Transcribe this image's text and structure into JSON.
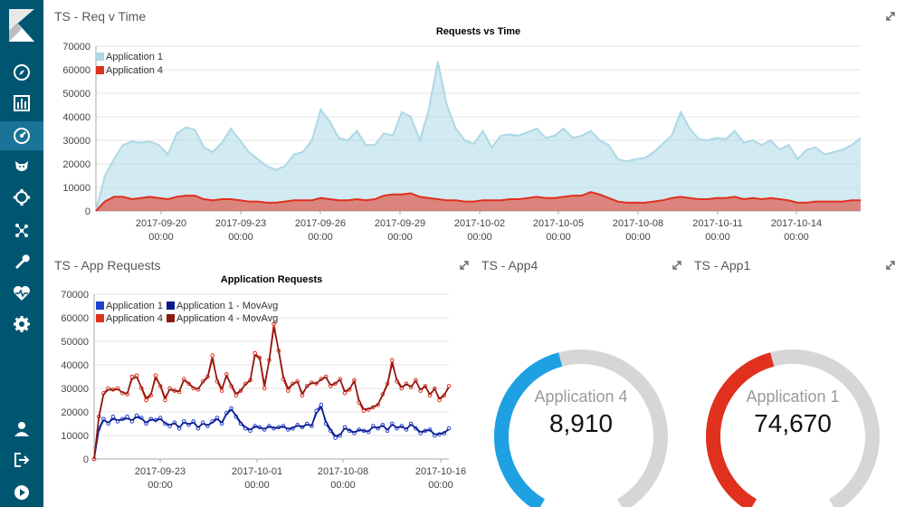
{
  "sidebar": {
    "items": [
      {
        "name": "discover-icon"
      },
      {
        "name": "visualize-icon"
      },
      {
        "name": "dashboard-icon"
      },
      {
        "name": "timelion-icon"
      },
      {
        "name": "apm-icon"
      },
      {
        "name": "graph-icon"
      },
      {
        "name": "devtools-icon"
      },
      {
        "name": "monitoring-icon"
      },
      {
        "name": "management-icon"
      }
    ],
    "bottom": [
      {
        "name": "user-icon"
      },
      {
        "name": "logout-icon"
      },
      {
        "name": "collapse-icon"
      }
    ]
  },
  "panels": {
    "top": {
      "title": "TS - Req v Time"
    },
    "bottom_left": {
      "title": "TS - App Requests"
    },
    "app4": {
      "title": "TS - App4"
    },
    "app1": {
      "title": "TS - App1"
    }
  },
  "chart_data": [
    {
      "type": "area",
      "title": "Requests vs Time",
      "ylim": [
        0,
        70000
      ],
      "yticks": [
        "0",
        "10000",
        "20000",
        "30000",
        "40000",
        "50000",
        "60000",
        "70000"
      ],
      "xticks": [
        {
          "date": "2017-09-20",
          "time": "00:00"
        },
        {
          "date": "2017-09-23",
          "time": "00:00"
        },
        {
          "date": "2017-09-26",
          "time": "00:00"
        },
        {
          "date": "2017-09-29",
          "time": "00:00"
        },
        {
          "date": "2017-10-02",
          "time": "00:00"
        },
        {
          "date": "2017-10-05",
          "time": "00:00"
        },
        {
          "date": "2017-10-08",
          "time": "00:00"
        },
        {
          "date": "2017-10-11",
          "time": "00:00"
        },
        {
          "date": "2017-10-14",
          "time": "00:00"
        }
      ],
      "legend": [
        "Application 1",
        "Application 4"
      ],
      "series": [
        {
          "name": "Application 1",
          "color": "#add8e6",
          "values": [
            0,
            15000,
            22000,
            28000,
            29500,
            29000,
            29500,
            28000,
            24000,
            33000,
            35500,
            34500,
            27000,
            25000,
            29000,
            35000,
            30000,
            25000,
            22000,
            19000,
            17500,
            19000,
            24000,
            25000,
            30000,
            43000,
            38000,
            31000,
            30000,
            34000,
            28000,
            28000,
            33000,
            32000,
            42000,
            40000,
            30000,
            43000,
            63500,
            45000,
            35000,
            30000,
            28500,
            34000,
            27000,
            32000,
            32500,
            32000,
            33500,
            35000,
            31000,
            32000,
            35000,
            31000,
            32000,
            34000,
            30000,
            28000,
            22000,
            21000,
            22000,
            22500,
            25000,
            28500,
            32000,
            42000,
            35000,
            30500,
            30000,
            31000,
            30500,
            34000,
            29000,
            30000,
            28000,
            30000,
            26000,
            28000,
            22000,
            26000,
            27000,
            24000,
            25000,
            26000,
            28000,
            31000
          ]
        },
        {
          "name": "Application 4",
          "color": "#e0301e",
          "values": [
            0,
            4000,
            6000,
            6000,
            5000,
            5500,
            6000,
            5500,
            5000,
            6000,
            6500,
            6500,
            5000,
            4500,
            5000,
            5000,
            4500,
            4000,
            4000,
            3500,
            3500,
            4000,
            4500,
            4500,
            4500,
            5500,
            5000,
            4500,
            4500,
            5000,
            4500,
            5000,
            6500,
            7000,
            7000,
            7500,
            6000,
            5500,
            5000,
            4500,
            4500,
            4000,
            4000,
            4500,
            4500,
            4500,
            5000,
            5000,
            5500,
            6000,
            5500,
            5500,
            6000,
            6500,
            6500,
            8000,
            7000,
            5500,
            4000,
            3500,
            3500,
            3500,
            4000,
            4500,
            5500,
            6000,
            5500,
            5000,
            5000,
            5500,
            5500,
            6000,
            5000,
            5500,
            5000,
            5500,
            5000,
            4500,
            3500,
            3500,
            4000,
            4000,
            4000,
            4000,
            4500,
            4500
          ]
        }
      ]
    },
    {
      "type": "line",
      "title": "Application Requests",
      "ylim": [
        0,
        70000
      ],
      "yticks": [
        "0",
        "10000",
        "20000",
        "30000",
        "40000",
        "50000",
        "60000",
        "70000"
      ],
      "xticks": [
        {
          "date": "2017-09-23",
          "time": "00:00"
        },
        {
          "date": "2017-10-01",
          "time": "00:00"
        },
        {
          "date": "2017-10-08",
          "time": "00:00"
        },
        {
          "date": "2017-10-16",
          "time": "00:00"
        }
      ],
      "legend": [
        "Application 1",
        "Application 1 - MovAvg",
        "Application 4",
        "Application 4 - MovAvg"
      ],
      "series": [
        {
          "name": "Application 1",
          "color": "#1e40d0",
          "values": [
            0,
            13000,
            17000,
            15000,
            18000,
            16000,
            17000,
            18000,
            16000,
            18500,
            17500,
            15000,
            17000,
            16500,
            17500,
            15000,
            14000,
            15500,
            13000,
            16000,
            14500,
            16000,
            13000,
            15500,
            14000,
            16000,
            17500,
            15000,
            19500,
            21500,
            18000,
            15000,
            13000,
            12000,
            14000,
            13500,
            12500,
            14000,
            13000,
            13500,
            14000,
            12500,
            13000,
            14500,
            13500,
            15000,
            14000,
            20500,
            23000,
            15000,
            12000,
            9000,
            10000,
            13500,
            12000,
            11000,
            12500,
            12000,
            11500,
            14000,
            13000,
            14500,
            12000,
            15000,
            13000,
            14000,
            12500,
            15000,
            13000,
            11000,
            12000,
            12500,
            10000,
            10500,
            11000,
            13000
          ]
        },
        {
          "name": "Application 1 - MovAvg",
          "color": "#0b1a8a",
          "values": [
            0,
            12500,
            16500,
            15500,
            17000,
            16500,
            16800,
            17200,
            16500,
            17800,
            17200,
            15500,
            16800,
            16300,
            17000,
            15300,
            14500,
            15200,
            13500,
            15500,
            14800,
            15500,
            13500,
            15000,
            14300,
            15500,
            17000,
            15500,
            19000,
            21000,
            18500,
            15500,
            13500,
            12500,
            13800,
            13300,
            12800,
            13800,
            13200,
            13300,
            13800,
            12800,
            13200,
            14200,
            13600,
            14600,
            14200,
            19500,
            22000,
            16000,
            12500,
            9800,
            10300,
            13000,
            12200,
            11400,
            12300,
            12000,
            11800,
            13600,
            13200,
            14200,
            12400,
            14600,
            13300,
            13800,
            12800,
            14600,
            13200,
            11500,
            12000,
            12300,
            10500,
            10700,
            11200,
            12600
          ]
        },
        {
          "name": "Application 4",
          "color": "#e0301e",
          "values": [
            0,
            18000,
            28000,
            30000,
            29500,
            30000,
            28000,
            27500,
            35000,
            35500,
            30000,
            25000,
            27000,
            35500,
            31000,
            25000,
            30000,
            29000,
            28500,
            34000,
            32000,
            30000,
            29500,
            33000,
            35000,
            44000,
            33000,
            29000,
            36000,
            31000,
            27000,
            29000,
            32000,
            33500,
            45000,
            43000,
            30000,
            42000,
            57500,
            46000,
            34000,
            29000,
            32000,
            33000,
            27000,
            31000,
            32500,
            32000,
            34000,
            35000,
            31000,
            32000,
            34000,
            28000,
            29500,
            33500,
            24000,
            20500,
            21000,
            22000,
            23000,
            27500,
            32000,
            42000,
            33000,
            30000,
            32000,
            30500,
            33500,
            29000,
            31000,
            27000,
            30000,
            25000,
            27000,
            31000
          ]
        },
        {
          "name": "Application 4 - MovAvg",
          "color": "#8b1a12",
          "values": [
            0,
            17500,
            27500,
            29500,
            29300,
            29700,
            28300,
            27800,
            34000,
            34800,
            30500,
            26000,
            27300,
            34500,
            31300,
            26000,
            29500,
            29000,
            28800,
            33500,
            32200,
            30300,
            29800,
            32600,
            34600,
            42500,
            33800,
            29800,
            35300,
            31500,
            27800,
            29000,
            31800,
            33300,
            44000,
            43000,
            31500,
            41500,
            56000,
            46500,
            35000,
            30000,
            31800,
            32800,
            27800,
            30800,
            32300,
            32100,
            33800,
            34700,
            31500,
            32100,
            33700,
            28800,
            29700,
            33000,
            25000,
            21200,
            21300,
            22100,
            23100,
            27100,
            31500,
            40500,
            33800,
            30500,
            31800,
            30700,
            33200,
            29500,
            30900,
            27500,
            29800,
            25700,
            27100,
            30500
          ]
        }
      ]
    }
  ],
  "gauges": [
    {
      "label": "Application 4",
      "value": "8,910",
      "fraction": 0.45,
      "color": "#1ea0e3",
      "track": "#d6d6d6"
    },
    {
      "label": "Application 1",
      "value": "74,670",
      "fraction": 0.45,
      "color": "#e0301e",
      "track": "#d6d6d6"
    }
  ]
}
